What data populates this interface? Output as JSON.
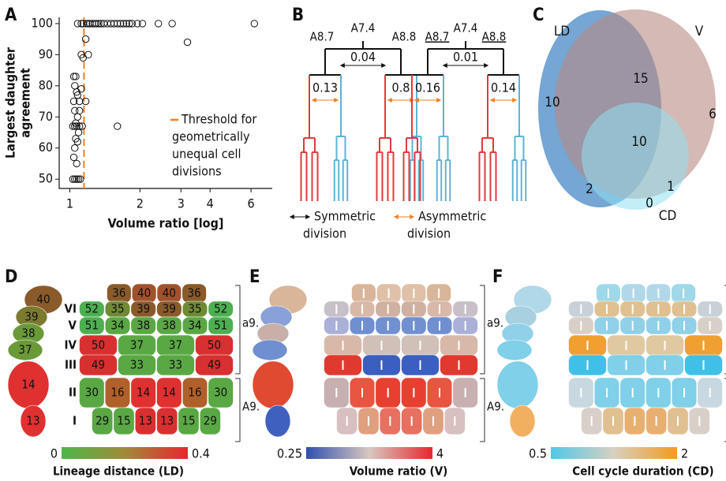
{
  "panel_labels": [
    "A",
    "B",
    "C",
    "D",
    "E",
    "F"
  ],
  "chart_data": {
    "type": "scatter",
    "x_label": "Volume ratio [log]",
    "y_label": [
      "Largest daughter",
      "agreement"
    ],
    "log_x": true,
    "marker_color": "#111",
    "x": [
      1.08,
      1.12,
      1.14,
      1.18,
      1.2,
      1.22,
      1.25,
      1.28,
      1.3,
      1.33,
      1.36,
      1.4,
      1.45,
      1.5,
      1.55,
      1.6,
      1.65,
      1.7,
      1.75,
      1.8,
      1.85,
      1.95,
      2.05,
      2.4,
      2.75,
      6.2,
      3.2,
      1.17,
      1.12,
      1.2,
      1.14,
      1.04,
      1.06,
      1.05,
      1.07,
      1.08,
      1.04,
      1.1,
      1.17,
      1.05,
      1.08,
      1.06,
      1.03,
      1.05,
      1.07,
      1.1,
      1.13,
      1.09,
      1.06,
      1.08,
      1.05,
      1.04,
      1.07,
      1.03,
      1.05,
      1.07,
      1.09,
      1.11,
      1.6,
      1.1,
      1.12
    ],
    "values": [
      100,
      100,
      100,
      100,
      100,
      100,
      100,
      100,
      100,
      100,
      100,
      100,
      100,
      100,
      100,
      100,
      100,
      100,
      100,
      100,
      100,
      100,
      100,
      100,
      100,
      100,
      94,
      95,
      90,
      90,
      89,
      83,
      83,
      80,
      78,
      77,
      75,
      75,
      75,
      72,
      70,
      68,
      67,
      67,
      67,
      67,
      67,
      65,
      63,
      62,
      60,
      57,
      55,
      50,
      50,
      50,
      50,
      50,
      67,
      72,
      79
    ],
    "xlim": [
      0.9,
      7.4
    ],
    "ylim": [
      47,
      102
    ],
    "xticks": [
      1,
      2,
      3,
      4,
      6
    ],
    "yticks": [
      50,
      60,
      70,
      80,
      90,
      100
    ],
    "threshold": {
      "value": 1.15,
      "color": "#f07f1e",
      "label": [
        "Threshold for",
        "geometrically",
        "unequal cell",
        "divisions"
      ]
    }
  },
  "dendrogram": {
    "groups": [
      {
        "left": "A8.7",
        "root": "A7.4",
        "right": "A8.8",
        "root_distance": 0.04,
        "left_distance": 0.13,
        "right_distance": 0.8
      },
      {
        "left": "A8.7",
        "root": "A7.4",
        "right": "A8.8",
        "root_distance": 0.01,
        "left_distance": 0.16,
        "right_distance": 0.14
      }
    ],
    "legend": [
      {
        "label": [
          "Symmetric",
          "division"
        ],
        "color": "#111"
      },
      {
        "label": [
          "Asymmetric",
          "division"
        ],
        "color": "#f07f1e"
      }
    ]
  },
  "venn": {
    "sets": [
      "LD",
      "V",
      "CD"
    ],
    "regions": {
      "ld_only": 10,
      "v_only": 6,
      "ld_v": 15,
      "ld_v_cd": 10,
      "ld_cd": 2,
      "cd_only": 0,
      "v_cd": 1
    }
  },
  "maps": [
    {
      "side": [
        40,
        39,
        38,
        37,
        14,
        13
      ],
      "rows": [
        [
          36,
          40,
          40,
          36
        ],
        [
          52,
          35,
          39,
          39,
          35,
          52
        ],
        [
          51,
          34,
          38,
          38,
          34,
          51
        ],
        [
          50,
          37,
          37,
          50
        ],
        [
          49,
          33,
          33,
          49
        ],
        [
          30,
          16,
          14,
          14,
          16,
          30
        ],
        [
          29,
          15,
          13,
          13,
          15,
          29
        ]
      ],
      "row_labels": [
        "VI",
        "V",
        "IV",
        "III",
        "II",
        "I"
      ],
      "brackets": [
        "a9.",
        "A9."
      ],
      "scale": {
        "min": 0,
        "max": 0.4,
        "label": "Lineage distance (LD)"
      }
    },
    {
      "brackets": [
        "a9.",
        "A9."
      ],
      "scale": {
        "min": 0.25,
        "max": 4,
        "label": "Volume ratio (V)"
      }
    },
    {
      "brackets": [
        "a9.",
        "A9."
      ],
      "scale": {
        "min": 0.5,
        "max": 2,
        "label": "Cell cycle duration (CD)"
      }
    }
  ]
}
